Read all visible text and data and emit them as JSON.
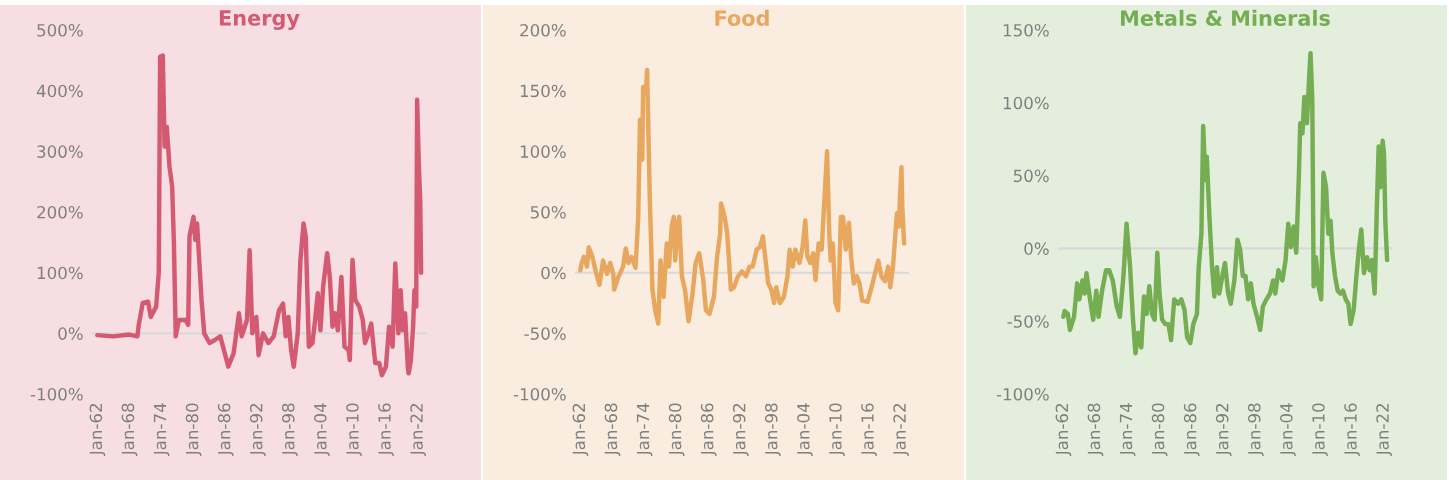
{
  "chart_data": [
    {
      "type": "line",
      "title": "Energy",
      "xlim": [
        "1961-01",
        "2023-07"
      ],
      "ylim": [
        -100,
        500
      ],
      "xticks": [
        {
          "value": "1962-01",
          "label": "Jan-62"
        },
        {
          "value": "1968-01",
          "label": "Jan-68"
        },
        {
          "value": "1974-01",
          "label": "Jan-74"
        },
        {
          "value": "1980-01",
          "label": "Jan-80"
        },
        {
          "value": "1986-01",
          "label": "Jan-86"
        },
        {
          "value": "1992-01",
          "label": "Jan-92"
        },
        {
          "value": "1998-01",
          "label": "Jan-98"
        },
        {
          "value": "2004-01",
          "label": "Jan-04"
        },
        {
          "value": "2010-01",
          "label": "Jan-10"
        },
        {
          "value": "2016-01",
          "label": "Jan-16"
        },
        {
          "value": "2022-01",
          "label": "Jan-22"
        }
      ],
      "yticks": [
        {
          "value": -100,
          "label": "-100%"
        },
        {
          "value": 0,
          "label": "0%"
        },
        {
          "value": 100,
          "label": "100%"
        },
        {
          "value": 200,
          "label": "200%"
        },
        {
          "value": 300,
          "label": "300%"
        },
        {
          "value": 400,
          "label": "400%"
        },
        {
          "value": 500,
          "label": "500%"
        }
      ],
      "ref_lines": [
        {
          "axis": "y",
          "value": 0,
          "color": "#d9d9d9"
        }
      ],
      "x": [
        "1962-01",
        "1965-01",
        "1968-01",
        "1969-07",
        "1969-10",
        "1970-07",
        "1971-07",
        "1972-01",
        "1973-01",
        "1973-07",
        "1973-10",
        "1974-04",
        "1974-08",
        "1975-01",
        "1975-07",
        "1976-01",
        "1976-05",
        "1976-09",
        "1977-04",
        "1978-07",
        "1979-01",
        "1979-04",
        "1980-01",
        "1980-05",
        "1980-09",
        "1981-07",
        "1982-01",
        "1983-01",
        "1984-01",
        "1985-01",
        "1986-01",
        "1986-07",
        "1987-07",
        "1988-07",
        "1989-01",
        "1990-01",
        "1990-07",
        "1991-01",
        "1991-10",
        "1992-03",
        "1993-01",
        "1994-01",
        "1995-01",
        "1996-01",
        "1996-10",
        "1997-04",
        "1997-10",
        "1998-04",
        "1998-10",
        "1999-07",
        "2000-01",
        "2000-08",
        "2001-01",
        "2001-08",
        "2002-04",
        "2002-10",
        "2003-04",
        "2003-10",
        "2004-04",
        "2005-01",
        "2005-07",
        "2006-01",
        "2006-07",
        "2007-01",
        "2007-09",
        "2008-04",
        "2009-01",
        "2009-04",
        "2009-10",
        "2010-04",
        "2011-01",
        "2011-09",
        "2012-02",
        "2012-10",
        "2013-04",
        "2014-01",
        "2014-10",
        "2015-04",
        "2016-01",
        "2016-08",
        "2017-04",
        "2017-10",
        "2018-05",
        "2018-10",
        "2019-03",
        "2019-08",
        "2020-02",
        "2020-04",
        "2020-09",
        "2021-02",
        "2021-05",
        "2021-09",
        "2021-11",
        "2022-03",
        "2022-06",
        "2022-08"
      ],
      "series": [
        {
          "color": "#d45a72",
          "values": [
            -3,
            -5,
            -2,
            -5,
            14,
            50,
            52,
            27,
            44,
            100,
            456,
            458,
            308,
            340,
            275,
            242,
            148,
            -5,
            22,
            22,
            14,
            160,
            192,
            154,
            181,
            55,
            0,
            -16,
            -11,
            -5,
            -38,
            -55,
            -33,
            33,
            -5,
            22,
            137,
            0,
            27,
            -36,
            0,
            -16,
            -5,
            38,
            49,
            -5,
            27,
            -27,
            -55,
            0,
            121,
            181,
            159,
            -22,
            -16,
            22,
            66,
            5,
            77,
            132,
            93,
            11,
            33,
            5,
            93,
            -22,
            -27,
            -44,
            121,
            55,
            44,
            22,
            -16,
            0,
            16,
            -49,
            -49,
            -69,
            -55,
            11,
            -22,
            115,
            0,
            71,
            5,
            33,
            -55,
            -66,
            -44,
            11,
            71,
            44,
            385,
            275,
            220,
            100
          ]
        }
      ]
    },
    {
      "type": "line",
      "title": "Food",
      "xlim": [
        "1961-01",
        "2023-07"
      ],
      "ylim": [
        -100,
        200
      ],
      "xticks": [
        {
          "value": "1962-01",
          "label": "Jan-62"
        },
        {
          "value": "1968-01",
          "label": "Jan-68"
        },
        {
          "value": "1974-01",
          "label": "Jan-74"
        },
        {
          "value": "1980-01",
          "label": "Jan-80"
        },
        {
          "value": "1986-01",
          "label": "Jan-86"
        },
        {
          "value": "1992-01",
          "label": "Jan-92"
        },
        {
          "value": "1998-01",
          "label": "Jan-98"
        },
        {
          "value": "2004-01",
          "label": "Jan-04"
        },
        {
          "value": "2010-01",
          "label": "Jan-10"
        },
        {
          "value": "2016-01",
          "label": "Jan-16"
        },
        {
          "value": "2022-01",
          "label": "Jan-22"
        }
      ],
      "yticks": [
        {
          "value": -100,
          "label": "-100%"
        },
        {
          "value": -50,
          "label": "-50%"
        },
        {
          "value": 0,
          "label": "0%"
        },
        {
          "value": 50,
          "label": "50%"
        },
        {
          "value": 100,
          "label": "100%"
        },
        {
          "value": 150,
          "label": "150%"
        },
        {
          "value": 200,
          "label": "200%"
        }
      ],
      "ref_lines": [
        {
          "axis": "y",
          "value": 0,
          "color": "#d9d9d9"
        }
      ],
      "x": [
        "1962-01",
        "1962-04",
        "1962-09",
        "1963-04",
        "1963-08",
        "1964-04",
        "1965-01",
        "1965-08",
        "1966-04",
        "1967-01",
        "1967-08",
        "1968-03",
        "1968-05",
        "1969-03",
        "1970-01",
        "1970-07",
        "1971-01",
        "1971-08",
        "1972-05",
        "1972-11",
        "1973-03",
        "1973-08",
        "1973-10",
        "1974-04",
        "1974-07",
        "1975-01",
        "1975-07",
        "1976-01",
        "1976-08",
        "1977-01",
        "1977-08",
        "1978-03",
        "1978-08",
        "1979-02",
        "1979-07",
        "1979-10",
        "1980-03",
        "1980-07",
        "1981-01",
        "1981-08",
        "1982-04",
        "1983-01",
        "1983-08",
        "1984-04",
        "1985-01",
        "1985-07",
        "1986-03",
        "1987-01",
        "1987-08",
        "1988-03",
        "1988-05",
        "1989-01",
        "1989-07",
        "1990-03",
        "1990-10",
        "1991-07",
        "1992-04",
        "1993-01",
        "1993-09",
        "1994-04",
        "1995-01",
        "1995-08",
        "1996-03",
        "1996-08",
        "1997-03",
        "1997-10",
        "1998-04",
        "1998-09",
        "1999-05",
        "2000-02",
        "2000-10",
        "2001-03",
        "2001-10",
        "2002-04",
        "2003-01",
        "2003-08",
        "2004-02",
        "2004-07",
        "2005-01",
        "2005-08",
        "2006-01",
        "2006-08",
        "2007-03",
        "2007-09",
        "2008-03",
        "2008-08",
        "2008-11",
        "2009-04",
        "2009-10",
        "2010-04",
        "2010-10",
        "2011-03",
        "2011-09",
        "2012-04",
        "2012-09",
        "2013-03",
        "2013-10",
        "2014-04",
        "2014-10",
        "2015-10",
        "2016-07",
        "2017-01",
        "2017-10",
        "2018-05",
        "2019-01",
        "2019-08",
        "2020-01",
        "2020-07",
        "2021-01",
        "2021-04",
        "2021-08",
        "2021-11",
        "2022-02",
        "2022-04",
        "2022-08"
      ],
      "series": [
        {
          "color": "#e8a75e",
          "values": [
            2,
            8,
            13,
            5,
            21,
            13,
            -1,
            -10,
            10,
            -1,
            8,
            -1,
            -14,
            -3,
            5,
            20,
            8,
            13,
            4,
            46,
            126,
            93,
            153,
            148,
            167,
            60,
            -14,
            -31,
            -42,
            10,
            -20,
            24,
            5,
            38,
            46,
            10,
            38,
            46,
            -3,
            -14,
            -40,
            -17,
            8,
            16,
            -6,
            -31,
            -34,
            -20,
            13,
            32,
            57,
            46,
            32,
            -14,
            -12,
            -3,
            1,
            -3,
            5,
            5,
            19,
            21,
            30,
            13,
            -9,
            -14,
            -25,
            -12,
            -25,
            -20,
            -3,
            19,
            5,
            19,
            8,
            21,
            43,
            13,
            8,
            16,
            -6,
            24,
            19,
            60,
            100,
            32,
            10,
            24,
            -25,
            -31,
            46,
            46,
            19,
            41,
            13,
            -9,
            -3,
            -9,
            -23,
            -24,
            -12,
            -3,
            10,
            -3,
            -7,
            5,
            -12,
            5,
            35,
            49,
            38,
            65,
            87,
            54,
            24
          ]
        }
      ]
    },
    {
      "type": "line",
      "title": "Metals & Minerals",
      "xlim": [
        "1961-01",
        "2023-07"
      ],
      "ylim": [
        -100,
        150
      ],
      "xticks": [
        {
          "value": "1962-01",
          "label": "Jan-62"
        },
        {
          "value": "1968-01",
          "label": "Jan-68"
        },
        {
          "value": "1974-01",
          "label": "Jan-74"
        },
        {
          "value": "1980-01",
          "label": "Jan-80"
        },
        {
          "value": "1986-01",
          "label": "Jan-86"
        },
        {
          "value": "1992-01",
          "label": "Jan-92"
        },
        {
          "value": "1998-01",
          "label": "Jan-98"
        },
        {
          "value": "2004-01",
          "label": "Jan-04"
        },
        {
          "value": "2010-01",
          "label": "Jan-10"
        },
        {
          "value": "2016-01",
          "label": "Jan-16"
        },
        {
          "value": "2022-01",
          "label": "Jan-22"
        }
      ],
      "yticks": [
        {
          "value": -100,
          "label": "-100%"
        },
        {
          "value": -50,
          "label": "-50%"
        },
        {
          "value": 0,
          "label": "0%"
        },
        {
          "value": 50,
          "label": "50%"
        },
        {
          "value": 100,
          "label": "100%"
        },
        {
          "value": 150,
          "label": "150%"
        }
      ],
      "ref_lines": [
        {
          "axis": "y",
          "value": 0,
          "color": "#d9d9d9"
        }
      ],
      "x": [
        "1962-01",
        "1962-04",
        "1962-11",
        "1963-04",
        "1964-01",
        "1964-08",
        "1965-01",
        "1965-08",
        "1966-01",
        "1966-05",
        "1967-01",
        "1967-08",
        "1968-03",
        "1968-08",
        "1969-04",
        "1970-01",
        "1970-08",
        "1971-04",
        "1972-01",
        "1972-08",
        "1973-04",
        "1973-11",
        "1974-07",
        "1975-01",
        "1975-07",
        "1976-01",
        "1976-08",
        "1977-02",
        "1977-08",
        "1978-02",
        "1978-08",
        "1979-02",
        "1979-08",
        "1980-01",
        "1980-07",
        "1981-02",
        "1981-09",
        "1982-03",
        "1982-10",
        "1983-07",
        "1984-02",
        "1984-09",
        "1985-03",
        "1985-10",
        "1986-05",
        "1987-01",
        "1987-05",
        "1987-11",
        "1988-03",
        "1988-08",
        "1988-11",
        "1989-05",
        "1989-11",
        "1990-04",
        "1990-10",
        "1991-03",
        "1991-10",
        "1992-04",
        "1992-11",
        "1993-05",
        "1994-01",
        "1994-08",
        "1995-02",
        "1995-08",
        "1996-02",
        "1996-08",
        "1997-02",
        "1997-08",
        "1998-04",
        "1998-11",
        "1999-05",
        "2000-01",
        "2000-09",
        "2001-04",
        "2001-09",
        "2002-04",
        "2003-01",
        "2003-08",
        "2004-02",
        "2004-08",
        "2005-02",
        "2005-08",
        "2006-02",
        "2006-05",
        "2006-10",
        "2007-02",
        "2007-08",
        "2008-01",
        "2008-04",
        "2008-08",
        "2008-11",
        "2009-04",
        "2009-10",
        "2010-04",
        "2010-09",
        "2011-03",
        "2011-08",
        "2012-01",
        "2012-05",
        "2012-11",
        "2013-05",
        "2013-11",
        "2014-05",
        "2014-11",
        "2015-05",
        "2015-10",
        "2016-05",
        "2016-11",
        "2017-05",
        "2017-10",
        "2018-04",
        "2018-11",
        "2019-05",
        "2019-10",
        "2020-04",
        "2020-09",
        "2021-01",
        "2021-05",
        "2021-10",
        "2022-01",
        "2022-04",
        "2022-08"
      ],
      "series": [
        {
          "color": "#74ad52",
          "values": [
            -47,
            -43,
            -45,
            -56,
            -47,
            -24,
            -35,
            -22,
            -31,
            -17,
            -35,
            -49,
            -29,
            -47,
            -29,
            -15,
            -15,
            -22,
            -40,
            -47,
            -19,
            17,
            -13,
            -47,
            -72,
            -58,
            -68,
            -33,
            -45,
            -26,
            -45,
            -49,
            -3,
            -31,
            -49,
            -52,
            -52,
            -63,
            -35,
            -38,
            -35,
            -42,
            -61,
            -65,
            -52,
            -45,
            -13,
            10,
            84,
            47,
            63,
            22,
            -13,
            -33,
            -13,
            -31,
            -19,
            -10,
            -31,
            -38,
            -22,
            6,
            -1,
            -19,
            -19,
            -35,
            -24,
            -38,
            -47,
            -56,
            -40,
            -35,
            -31,
            -22,
            -31,
            -15,
            -22,
            -8,
            17,
            1,
            15,
            -3,
            52,
            86,
            79,
            104,
            86,
            118,
            134,
            102,
            -26,
            -6,
            -26,
            -35,
            52,
            42,
            10,
            19,
            -3,
            -19,
            -29,
            -31,
            -29,
            -35,
            -38,
            -52,
            -42,
            -19,
            1,
            13,
            -17,
            -6,
            -15,
            -8,
            -31,
            29,
            70,
            42,
            74,
            65,
            19,
            -8
          ]
        }
      ]
    }
  ]
}
